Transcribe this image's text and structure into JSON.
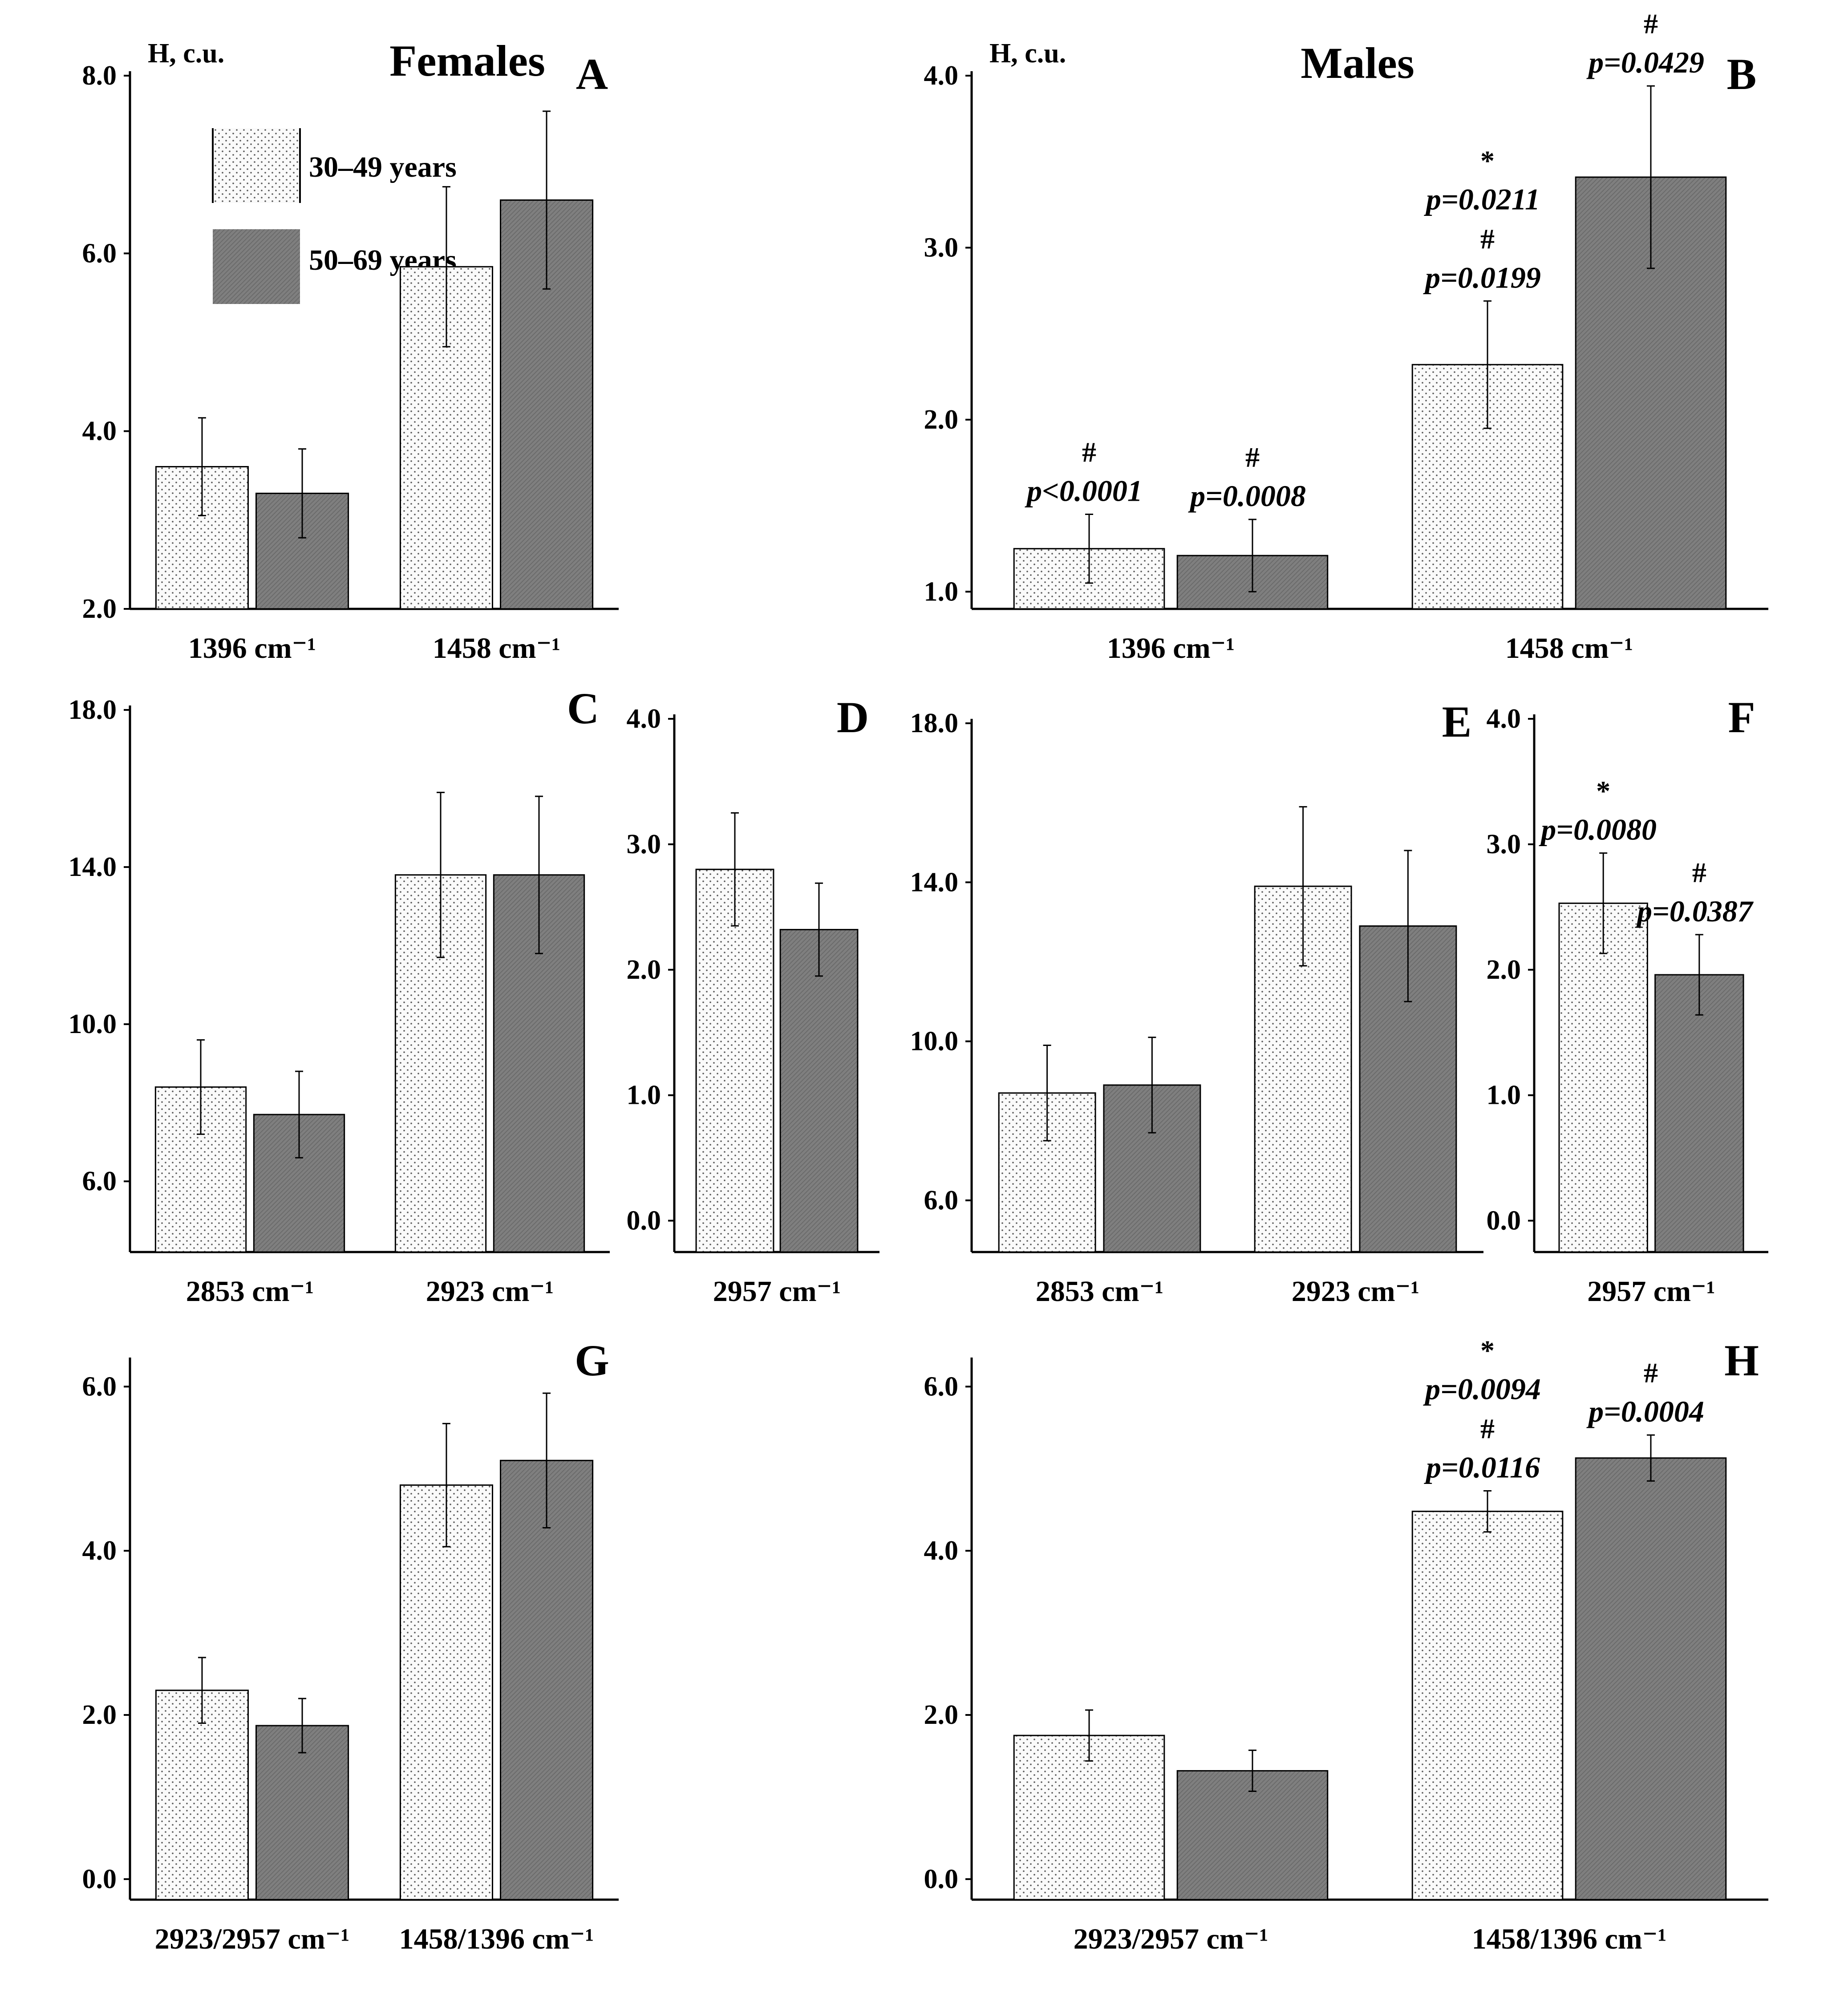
{
  "figure": {
    "title_females": "Females",
    "title_males": "Males",
    "colors": {
      "females_title": "#e8202a",
      "males_title": "#1414e6",
      "bar_dark": "#7f7f7f",
      "bar_light": "#fafafa",
      "axis": "#000000"
    },
    "legend": [
      {
        "label": "30–49 years",
        "pattern": "dotted-light"
      },
      {
        "label": "50–69 years",
        "pattern": "hatched-dark"
      }
    ]
  },
  "chart_data": [
    {
      "id": "A",
      "type": "bar",
      "group": "Females",
      "ylabel": "H, c.u.",
      "ylim": [
        2,
        8
      ],
      "yticks": [
        2,
        4,
        6,
        8
      ],
      "tick_decimals": 1,
      "categories": [
        "1396 cm⁻¹",
        "1458 cm⁻¹"
      ],
      "series": [
        {
          "name": "30–49 years",
          "values": [
            3.6,
            5.85
          ],
          "errors": [
            0.55,
            0.9
          ]
        },
        {
          "name": "50–69 years",
          "values": [
            3.3,
            6.6
          ],
          "errors": [
            0.5,
            1.0
          ]
        }
      ],
      "annotations": []
    },
    {
      "id": "B",
      "type": "bar",
      "group": "Males",
      "ylabel": "H, c.u.",
      "ylim": [
        0.9,
        4.0
      ],
      "yticks": [
        1,
        2,
        3,
        4
      ],
      "tick_decimals": 1,
      "categories": [
        "1396 cm⁻¹",
        "1458 cm⁻¹"
      ],
      "series": [
        {
          "name": "30–49 years",
          "values": [
            1.25,
            2.32
          ],
          "errors": [
            0.2,
            0.37
          ]
        },
        {
          "name": "50–69 years",
          "values": [
            1.21,
            3.41
          ],
          "errors": [
            0.21,
            0.53
          ]
        }
      ],
      "annotations": [
        {
          "category": 0,
          "series": 0,
          "lines": [
            "#",
            "p<0.0001"
          ]
        },
        {
          "category": 0,
          "series": 1,
          "lines": [
            "#",
            "p=0.0008"
          ]
        },
        {
          "category": 1,
          "series": 0,
          "lines": [
            "*",
            "p=0.0211",
            "#",
            "p=0.0199"
          ]
        },
        {
          "category": 1,
          "series": 1,
          "lines": [
            "#",
            "p=0.0429"
          ]
        }
      ]
    },
    {
      "id": "C",
      "type": "bar",
      "group": "Females",
      "ylim": [
        4.2,
        18
      ],
      "yticks": [
        6,
        10,
        14,
        18
      ],
      "tick_decimals": 1,
      "categories": [
        "2853 cm⁻¹",
        "2923 cm⁻¹"
      ],
      "series": [
        {
          "name": "30–49 years",
          "values": [
            8.4,
            13.8
          ],
          "errors": [
            1.2,
            2.1
          ]
        },
        {
          "name": "50–69 years",
          "values": [
            7.7,
            13.8
          ],
          "errors": [
            1.1,
            2.0
          ]
        }
      ],
      "annotations": []
    },
    {
      "id": "D",
      "type": "bar",
      "group": "Females",
      "ylim": [
        -0.25,
        4.0
      ],
      "yticks": [
        0,
        1,
        2,
        3,
        4
      ],
      "tick_decimals": 1,
      "categories": [
        "2957 cm⁻¹"
      ],
      "series": [
        {
          "name": "30–49 years",
          "values": [
            2.8
          ],
          "errors": [
            0.45
          ]
        },
        {
          "name": "50–69 years",
          "values": [
            2.32
          ],
          "errors": [
            0.37
          ]
        }
      ],
      "annotations": []
    },
    {
      "id": "E",
      "type": "bar",
      "group": "Males",
      "ylim": [
        4.7,
        18
      ],
      "yticks": [
        6,
        10,
        14,
        18
      ],
      "tick_decimals": 1,
      "categories": [
        "2853 cm⁻¹",
        "2923 cm⁻¹"
      ],
      "series": [
        {
          "name": "30–49 years",
          "values": [
            8.7,
            13.9
          ],
          "errors": [
            1.2,
            2.0
          ]
        },
        {
          "name": "50–69 years",
          "values": [
            8.9,
            12.9
          ],
          "errors": [
            1.2,
            1.9
          ]
        }
      ],
      "annotations": []
    },
    {
      "id": "F",
      "type": "bar",
      "group": "Males",
      "ylim": [
        -0.25,
        4.0
      ],
      "yticks": [
        0,
        1,
        2,
        3,
        4
      ],
      "tick_decimals": 1,
      "categories": [
        "2957 cm⁻¹"
      ],
      "series": [
        {
          "name": "30–49 years",
          "values": [
            2.53
          ],
          "errors": [
            0.4
          ]
        },
        {
          "name": "50–69 years",
          "values": [
            1.96
          ],
          "errors": [
            0.32
          ]
        }
      ],
      "annotations": [
        {
          "category": 0,
          "series": 0,
          "lines": [
            "*",
            "p=0.0080"
          ]
        },
        {
          "category": 0,
          "series": 1,
          "lines": [
            "#",
            "p=0.0387"
          ]
        }
      ]
    },
    {
      "id": "G",
      "type": "bar",
      "group": "Females",
      "ylim": [
        -0.25,
        6.3
      ],
      "yticks": [
        0,
        2,
        4,
        6
      ],
      "tick_decimals": 1,
      "categories": [
        "2923/2957 cm⁻¹",
        "1458/1396 cm⁻¹"
      ],
      "series": [
        {
          "name": "30–49 years",
          "values": [
            2.3,
            4.8
          ],
          "errors": [
            0.4,
            0.75
          ]
        },
        {
          "name": "50–69 years",
          "values": [
            1.87,
            5.1
          ],
          "errors": [
            0.33,
            0.82
          ]
        }
      ],
      "annotations": []
    },
    {
      "id": "H",
      "type": "bar",
      "group": "Males",
      "ylim": [
        -0.25,
        6.3
      ],
      "yticks": [
        0,
        2,
        4,
        6
      ],
      "tick_decimals": 1,
      "categories": [
        "2923/2957 cm⁻¹",
        "1458/1396 cm⁻¹"
      ],
      "series": [
        {
          "name": "30–49 years",
          "values": [
            1.75,
            4.48
          ],
          "errors": [
            0.31,
            0.25
          ]
        },
        {
          "name": "50–69 years",
          "values": [
            1.32,
            5.13
          ],
          "errors": [
            0.25,
            0.28
          ]
        }
      ],
      "annotations": [
        {
          "category": 1,
          "series": 0,
          "lines": [
            "*",
            "p=0.0094",
            "#",
            "p=0.0116"
          ]
        },
        {
          "category": 1,
          "series": 1,
          "lines": [
            "#",
            "p=0.0004"
          ]
        }
      ]
    }
  ]
}
